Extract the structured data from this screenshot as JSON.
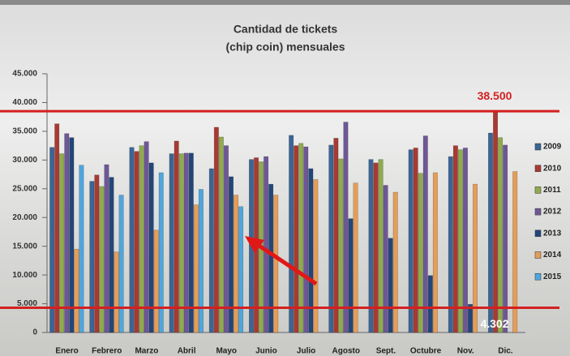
{
  "chart_data": {
    "type": "bar",
    "title": "Cantidad de tickets",
    "subtitle": "(chip coin) mensuales",
    "categories": [
      "Enero",
      "Febrero",
      "Marzo",
      "Abril",
      "Mayo",
      "Junio",
      "Julio",
      "Agosto",
      "Sept.",
      "Octubre",
      "Nov.",
      "Dic."
    ],
    "series": [
      {
        "name": "2009",
        "color": "#3b6594",
        "values": [
          32200,
          26300,
          32200,
          31100,
          28500,
          30100,
          34300,
          32600,
          30100,
          31800,
          30600,
          34700
        ]
      },
      {
        "name": "2010",
        "color": "#a83a32",
        "values": [
          36300,
          27400,
          31500,
          33300,
          35700,
          30400,
          32500,
          33800,
          29500,
          32100,
          32500,
          38500
        ]
      },
      {
        "name": "2011",
        "color": "#8fab4e",
        "values": [
          31100,
          25400,
          32500,
          31100,
          34000,
          29700,
          32900,
          30200,
          30100,
          27700,
          31800,
          33900
        ]
      },
      {
        "name": "2012",
        "color": "#6e5796",
        "values": [
          34600,
          29200,
          33200,
          31200,
          32500,
          30600,
          32300,
          36600,
          25600,
          34200,
          32100,
          32600
        ]
      },
      {
        "name": "2013",
        "color": "#22467a",
        "values": [
          33900,
          27000,
          29500,
          31200,
          27100,
          25800,
          28500,
          19800,
          16400,
          9900,
          4900,
          null
        ]
      },
      {
        "name": "2014",
        "color": "#e59d58",
        "values": [
          14500,
          14000,
          17800,
          22200,
          23900,
          23900,
          26600,
          26000,
          24400,
          27800,
          25800,
          28000
        ]
      },
      {
        "name": "2015",
        "color": "#4ea6de",
        "values": [
          29100,
          23900,
          27800,
          24900,
          21900,
          null,
          null,
          null,
          null,
          null,
          null,
          null
        ]
      }
    ],
    "ylim": [
      0,
      45000
    ],
    "yticks": [
      0,
      {
        "value": 5000,
        "label": "5.000"
      },
      {
        "value": 10000,
        "label": "10.000"
      },
      {
        "value": 15000,
        "label": "15.000"
      },
      {
        "value": 20000,
        "label": "20.000"
      },
      {
        "value": 25000,
        "label": "25.000"
      },
      {
        "value": 30000,
        "label": "30.000"
      },
      {
        "value": 35000,
        "label": "35.000"
      },
      {
        "value": 40000,
        "label": "40.000"
      },
      {
        "value": 45000,
        "label": "45.000"
      }
    ],
    "reference_lines": [
      {
        "value": 38500,
        "label": "38.500",
        "color": "#d42020"
      },
      {
        "value": 4302,
        "label": "4.302",
        "color": "#d42020"
      }
    ]
  }
}
